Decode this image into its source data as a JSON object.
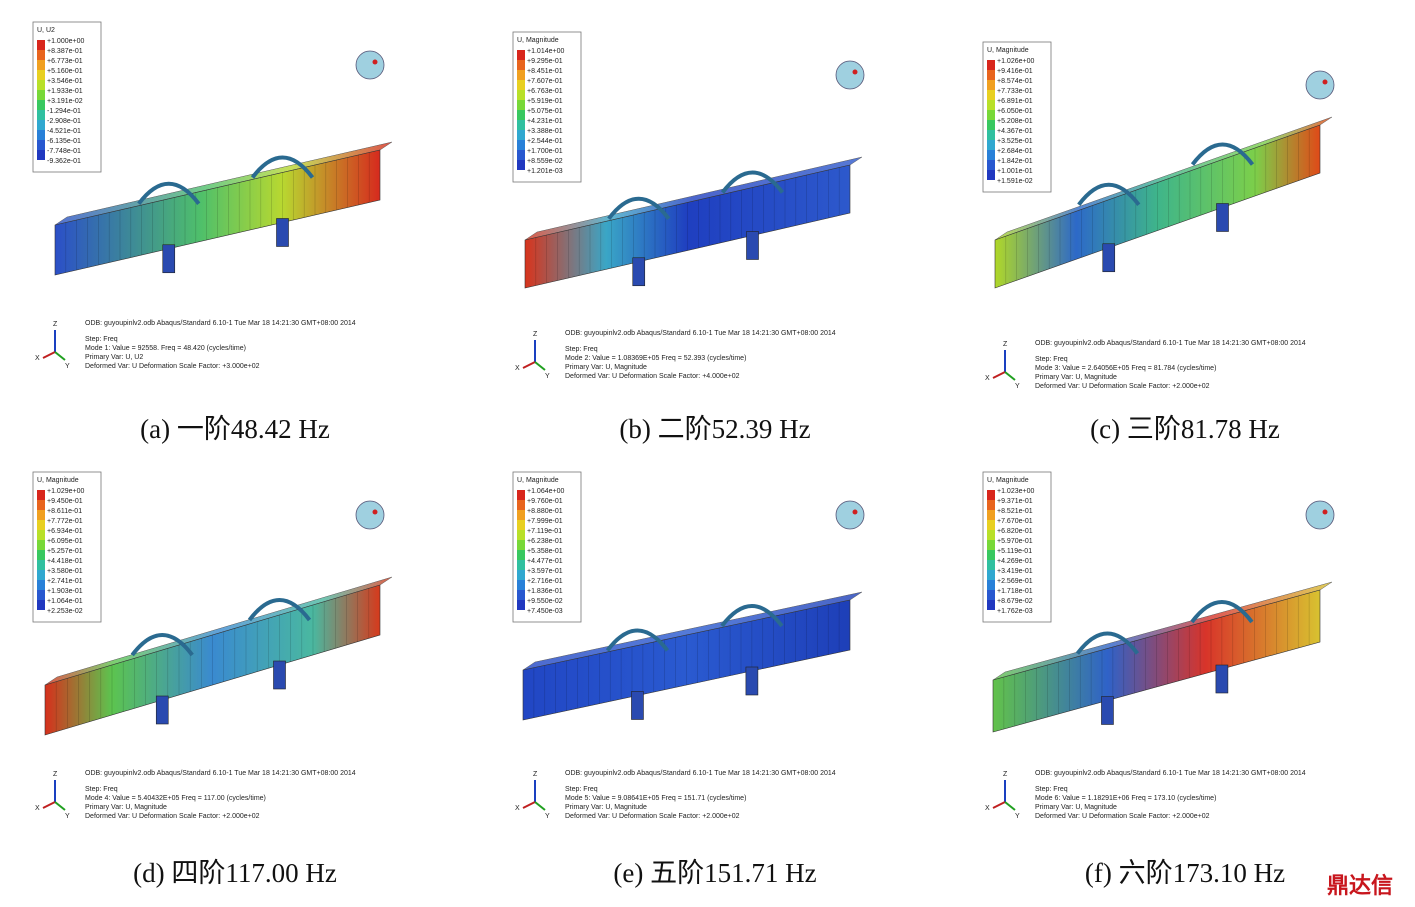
{
  "panels": [
    {
      "legend_title": "U, U2",
      "legend_values": [
        "+1.000e+00",
        "+8.387e-01",
        "+6.773e-01",
        "+5.160e-01",
        "+3.546e-01",
        "+1.933e-01",
        "+3.191e-02",
        "-1.294e-01",
        "-2.908e-01",
        "-4.521e-01",
        "-6.135e-01",
        "-7.748e-01",
        "-9.362e-01"
      ],
      "odb": "ODB: guyoupinlv2.odb    Abaqus/Standard 6.10-1    Tue Mar 18 14:21:30 GMT+08:00 2014",
      "step": "Step: Freq",
      "mode": "Mode    1: Value =  92558.    Freq =  48.420    (cycles/time)",
      "primary": "Primary Var: U, U2",
      "deformed": "Deformed Var: U   Deformation Scale Factor: +3.000e+02",
      "caption": "(a) 一阶48.42 Hz"
    },
    {
      "legend_title": "U, Magnitude",
      "legend_values": [
        "+1.014e+00",
        "+9.295e-01",
        "+8.451e-01",
        "+7.607e-01",
        "+6.763e-01",
        "+5.919e-01",
        "+5.075e-01",
        "+4.231e-01",
        "+3.388e-01",
        "+2.544e-01",
        "+1.700e-01",
        "+8.559e-02",
        "+1.201e-03"
      ],
      "odb": "ODB: guyoupinlv2.odb    Abaqus/Standard 6.10-1    Tue Mar 18 14:21:30 GMT+08:00 2014",
      "step": "Step: Freq",
      "mode": "Mode    2: Value = 1.08369E+05 Freq =  52.393    (cycles/time)",
      "primary": "Primary Var: U, Magnitude",
      "deformed": "Deformed Var: U   Deformation Scale Factor: +4.000e+02",
      "caption": "(b) 二阶52.39 Hz"
    },
    {
      "legend_title": "U, Magnitude",
      "legend_values": [
        "+1.026e+00",
        "+9.416e-01",
        "+8.574e-01",
        "+7.733e-01",
        "+6.891e-01",
        "+6.050e-01",
        "+5.208e-01",
        "+4.367e-01",
        "+3.525e-01",
        "+2.684e-01",
        "+1.842e-01",
        "+1.001e-01",
        "+1.591e-02"
      ],
      "odb": "ODB: guyoupinlv2.odb    Abaqus/Standard 6.10-1    Tue Mar 18 14:21:30 GMT+08:00 2014",
      "step": "Step: Freq",
      "mode": "Mode    3: Value = 2.64056E+05 Freq =  81.784    (cycles/time)",
      "primary": "Primary Var: U, Magnitude",
      "deformed": "Deformed Var: U   Deformation Scale Factor: +2.000e+02",
      "caption": "(c) 三阶81.78 Hz"
    },
    {
      "legend_title": "U, Magnitude",
      "legend_values": [
        "+1.029e+00",
        "+9.450e-01",
        "+8.611e-01",
        "+7.772e-01",
        "+6.934e-01",
        "+6.095e-01",
        "+5.257e-01",
        "+4.418e-01",
        "+3.580e-01",
        "+2.741e-01",
        "+1.903e-01",
        "+1.064e-01",
        "+2.253e-02"
      ],
      "odb": "ODB: guyoupinlv2.odb    Abaqus/Standard 6.10-1    Tue Mar 18 14:21:30 GMT+08:00 2014",
      "step": "Step: Freq",
      "mode": "Mode    4: Value = 5.40432E+05 Freq =  117.00    (cycles/time)",
      "primary": "Primary Var: U, Magnitude",
      "deformed": "Deformed Var: U   Deformation Scale Factor: +2.000e+02",
      "caption": "(d) 四阶117.00 Hz"
    },
    {
      "legend_title": "U, Magnitude",
      "legend_values": [
        "+1.064e+00",
        "+9.760e-01",
        "+8.880e-01",
        "+7.999e-01",
        "+7.119e-01",
        "+6.238e-01",
        "+5.358e-01",
        "+4.477e-01",
        "+3.597e-01",
        "+2.716e-01",
        "+1.836e-01",
        "+9.550e-02",
        "+7.450e-03"
      ],
      "odb": "ODB: guyoupinlv2.odb    Abaqus/Standard 6.10-1    Tue Mar 18 14:21:30 GMT+08:00 2014",
      "step": "Step: Freq",
      "mode": "Mode    5: Value = 9.08641E+05 Freq =  151.71    (cycles/time)",
      "primary": "Primary Var: U, Magnitude",
      "deformed": "Deformed Var: U   Deformation Scale Factor: +2.000e+02",
      "caption": "(e)   五阶151.71 Hz"
    },
    {
      "legend_title": "U, Magnitude",
      "legend_values": [
        "+1.023e+00",
        "+9.371e-01",
        "+8.521e-01",
        "+7.670e-01",
        "+6.820e-01",
        "+5.970e-01",
        "+5.119e-01",
        "+4.269e-01",
        "+3.419e-01",
        "+2.569e-01",
        "+1.718e-01",
        "+8.679e-02",
        "+1.762e-03"
      ],
      "odb": "ODB: guyoupinlv2.odb    Abaqus/Standard 6.10-1    Tue Mar 18 14:21:30 GMT+08:00 2014",
      "step": "Step: Freq",
      "mode": "Mode    6: Value = 1.18291E+06 Freq =  173.10    (cycles/time)",
      "primary": "Primary Var: U, Magnitude",
      "deformed": "Deformed Var: U   Deformation Scale Factor: +2.000e+02",
      "caption": "(f) 六阶173.10 Hz"
    }
  ],
  "axes": {
    "z": "Z",
    "x": "X",
    "y": "Y"
  },
  "watermark": "鼎达信"
}
